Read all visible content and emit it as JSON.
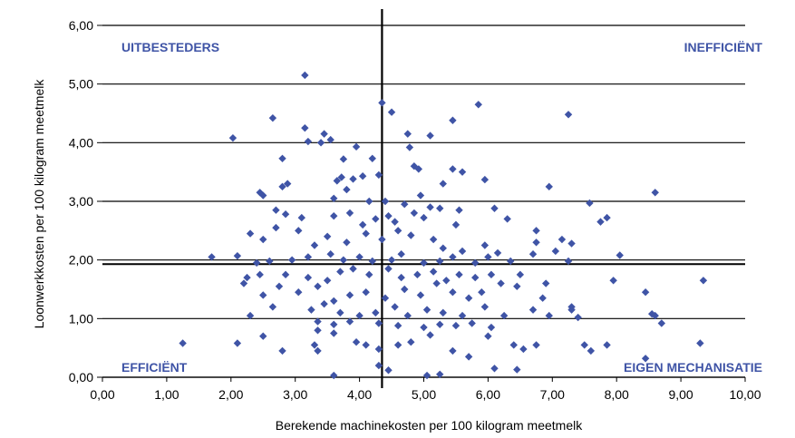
{
  "colors": {
    "marker": "#3f54a6",
    "label": "#3f54a6",
    "grid": "#000000"
  },
  "chart_data": {
    "type": "scatter",
    "title": "",
    "xlabel": "Berekende machinekosten per 100 kilogram meetmelk",
    "ylabel": "Loonwerkkosten per 100 kilogram meetmelk",
    "xlim": [
      0,
      10
    ],
    "ylim": [
      0,
      6
    ],
    "xticks": [
      "0,00",
      "1,00",
      "2,00",
      "3,00",
      "4,00",
      "5,00",
      "6,00",
      "7,00",
      "8,00",
      "9,00",
      "10,00"
    ],
    "yticks": [
      "0,00",
      "1,00",
      "2,00",
      "3,00",
      "4,00",
      "5,00",
      "6,00"
    ],
    "grid": "horizontal",
    "reference_lines": {
      "vertical_x": 4.35,
      "horizontal_y": 1.93
    },
    "quadrant_labels": {
      "top_left": "UITBESTEDERS",
      "top_right": "INEFFICIËNT",
      "bottom_left": "EFFICIËNT",
      "bottom_right": "EIGEN MECHANISATIE"
    },
    "points": [
      [
        3.15,
        5.15
      ],
      [
        2.65,
        4.42
      ],
      [
        2.03,
        4.08
      ],
      [
        3.15,
        4.25
      ],
      [
        3.45,
        4.15
      ],
      [
        3.55,
        4.05
      ],
      [
        3.2,
        4.02
      ],
      [
        3.4,
        4.0
      ],
      [
        3.95,
        3.93
      ],
      [
        4.35,
        4.68
      ],
      [
        4.5,
        4.52
      ],
      [
        4.75,
        4.15
      ],
      [
        5.1,
        4.12
      ],
      [
        5.45,
        4.38
      ],
      [
        5.85,
        4.65
      ],
      [
        7.25,
        4.48
      ],
      [
        2.8,
        3.73
      ],
      [
        3.75,
        3.72
      ],
      [
        4.2,
        3.73
      ],
      [
        3.65,
        3.35
      ],
      [
        3.72,
        3.41
      ],
      [
        4.05,
        3.43
      ],
      [
        3.9,
        3.38
      ],
      [
        4.3,
        3.45
      ],
      [
        4.78,
        3.92
      ],
      [
        4.85,
        3.6
      ],
      [
        4.92,
        3.55
      ],
      [
        5.3,
        3.3
      ],
      [
        5.45,
        3.55
      ],
      [
        5.6,
        3.5
      ],
      [
        5.95,
        3.37
      ],
      [
        6.95,
        3.25
      ],
      [
        7.58,
        2.97
      ],
      [
        8.6,
        3.15
      ],
      [
        2.8,
        3.25
      ],
      [
        2.88,
        3.3
      ],
      [
        2.45,
        3.15
      ],
      [
        2.5,
        3.1
      ],
      [
        3.6,
        3.05
      ],
      [
        3.8,
        3.2
      ],
      [
        4.15,
        3.0
      ],
      [
        4.4,
        3.0
      ],
      [
        4.7,
        2.95
      ],
      [
        4.95,
        3.1
      ],
      [
        5.1,
        2.9
      ],
      [
        5.25,
        2.88
      ],
      [
        5.55,
        2.85
      ],
      [
        6.1,
        2.88
      ],
      [
        6.75,
        2.5
      ],
      [
        7.15,
        2.35
      ],
      [
        7.85,
        2.72
      ],
      [
        7.75,
        2.65
      ],
      [
        2.7,
        2.85
      ],
      [
        2.85,
        2.78
      ],
      [
        3.1,
        2.72
      ],
      [
        3.6,
        2.75
      ],
      [
        3.85,
        2.8
      ],
      [
        4.05,
        2.6
      ],
      [
        4.25,
        2.7
      ],
      [
        4.45,
        2.75
      ],
      [
        4.55,
        2.65
      ],
      [
        4.85,
        2.8
      ],
      [
        5.0,
        2.72
      ],
      [
        5.5,
        2.6
      ],
      [
        6.3,
        2.7
      ],
      [
        2.3,
        2.45
      ],
      [
        2.5,
        2.35
      ],
      [
        2.7,
        2.55
      ],
      [
        3.05,
        2.5
      ],
      [
        3.3,
        2.25
      ],
      [
        3.5,
        2.4
      ],
      [
        3.8,
        2.3
      ],
      [
        4.1,
        2.45
      ],
      [
        4.35,
        2.35
      ],
      [
        4.6,
        2.5
      ],
      [
        4.8,
        2.42
      ],
      [
        5.15,
        2.35
      ],
      [
        5.3,
        2.2
      ],
      [
        5.6,
        2.15
      ],
      [
        5.95,
        2.25
      ],
      [
        6.15,
        2.12
      ],
      [
        6.75,
        2.3
      ],
      [
        7.05,
        2.15
      ],
      [
        7.3,
        2.28
      ],
      [
        8.05,
        2.08
      ],
      [
        1.7,
        2.05
      ],
      [
        2.1,
        2.07
      ],
      [
        2.4,
        1.95
      ],
      [
        2.6,
        1.98
      ],
      [
        2.95,
        2.0
      ],
      [
        3.2,
        2.05
      ],
      [
        3.55,
        2.1
      ],
      [
        3.75,
        2.0
      ],
      [
        4.0,
        2.05
      ],
      [
        4.2,
        1.98
      ],
      [
        4.5,
        2.0
      ],
      [
        4.65,
        2.1
      ],
      [
        5.0,
        1.95
      ],
      [
        5.25,
        1.98
      ],
      [
        5.45,
        2.05
      ],
      [
        5.8,
        1.95
      ],
      [
        6.0,
        2.05
      ],
      [
        6.35,
        1.98
      ],
      [
        6.7,
        2.1
      ],
      [
        7.25,
        1.98
      ],
      [
        2.25,
        1.7
      ],
      [
        2.45,
        1.75
      ],
      [
        2.85,
        1.75
      ],
      [
        3.2,
        1.7
      ],
      [
        3.5,
        1.65
      ],
      [
        3.7,
        1.8
      ],
      [
        3.9,
        1.85
      ],
      [
        4.15,
        1.75
      ],
      [
        4.45,
        1.85
      ],
      [
        4.65,
        1.7
      ],
      [
        4.9,
        1.75
      ],
      [
        5.15,
        1.8
      ],
      [
        5.35,
        1.65
      ],
      [
        5.55,
        1.75
      ],
      [
        5.8,
        1.7
      ],
      [
        6.05,
        1.75
      ],
      [
        6.5,
        1.75
      ],
      [
        6.9,
        1.6
      ],
      [
        7.95,
        1.65
      ],
      [
        9.35,
        1.65
      ],
      [
        2.2,
        1.6
      ],
      [
        2.5,
        1.4
      ],
      [
        2.75,
        1.55
      ],
      [
        3.05,
        1.45
      ],
      [
        3.35,
        1.55
      ],
      [
        3.6,
        1.3
      ],
      [
        3.85,
        1.4
      ],
      [
        4.1,
        1.45
      ],
      [
        4.4,
        1.35
      ],
      [
        4.7,
        1.5
      ],
      [
        4.95,
        1.4
      ],
      [
        5.2,
        1.6
      ],
      [
        5.45,
        1.45
      ],
      [
        5.7,
        1.35
      ],
      [
        5.9,
        1.45
      ],
      [
        6.2,
        1.6
      ],
      [
        6.45,
        1.55
      ],
      [
        6.85,
        1.35
      ],
      [
        7.3,
        1.2
      ],
      [
        8.45,
        1.45
      ],
      [
        2.3,
        1.05
      ],
      [
        2.65,
        1.2
      ],
      [
        3.25,
        1.15
      ],
      [
        3.45,
        1.25
      ],
      [
        3.7,
        1.1
      ],
      [
        4.0,
        1.05
      ],
      [
        4.25,
        1.1
      ],
      [
        4.55,
        1.2
      ],
      [
        4.75,
        1.05
      ],
      [
        5.05,
        1.15
      ],
      [
        5.3,
        1.1
      ],
      [
        5.6,
        1.05
      ],
      [
        5.95,
        1.2
      ],
      [
        6.25,
        1.05
      ],
      [
        6.7,
        1.15
      ],
      [
        6.95,
        1.05
      ],
      [
        7.3,
        1.15
      ],
      [
        7.4,
        1.02
      ],
      [
        8.55,
        1.08
      ],
      [
        8.6,
        1.05
      ],
      [
        8.7,
        0.92
      ],
      [
        3.35,
        0.95
      ],
      [
        3.6,
        0.9
      ],
      [
        3.85,
        0.95
      ],
      [
        4.3,
        0.92
      ],
      [
        4.6,
        0.88
      ],
      [
        5.0,
        0.85
      ],
      [
        5.25,
        0.9
      ],
      [
        5.5,
        0.88
      ],
      [
        5.75,
        0.92
      ],
      [
        6.05,
        0.85
      ],
      [
        2.5,
        0.7
      ],
      [
        2.8,
        0.45
      ],
      [
        3.3,
        0.55
      ],
      [
        3.35,
        0.8
      ],
      [
        3.6,
        0.75
      ],
      [
        3.95,
        0.6
      ],
      [
        4.1,
        0.55
      ],
      [
        4.3,
        0.48
      ],
      [
        4.6,
        0.55
      ],
      [
        4.8,
        0.6
      ],
      [
        5.1,
        0.72
      ],
      [
        5.45,
        0.45
      ],
      [
        5.7,
        0.35
      ],
      [
        6.0,
        0.7
      ],
      [
        6.4,
        0.55
      ],
      [
        6.55,
        0.48
      ],
      [
        6.75,
        0.55
      ],
      [
        7.5,
        0.55
      ],
      [
        7.6,
        0.45
      ],
      [
        7.85,
        0.55
      ],
      [
        8.45,
        0.32
      ],
      [
        9.3,
        0.58
      ],
      [
        1.25,
        0.58
      ],
      [
        2.1,
        0.58
      ],
      [
        3.6,
        0.03
      ],
      [
        4.3,
        0.2
      ],
      [
        4.45,
        0.12
      ],
      [
        5.05,
        0.03
      ],
      [
        5.25,
        0.05
      ],
      [
        6.1,
        0.15
      ],
      [
        6.45,
        0.13
      ],
      [
        3.35,
        0.45
      ]
    ]
  }
}
